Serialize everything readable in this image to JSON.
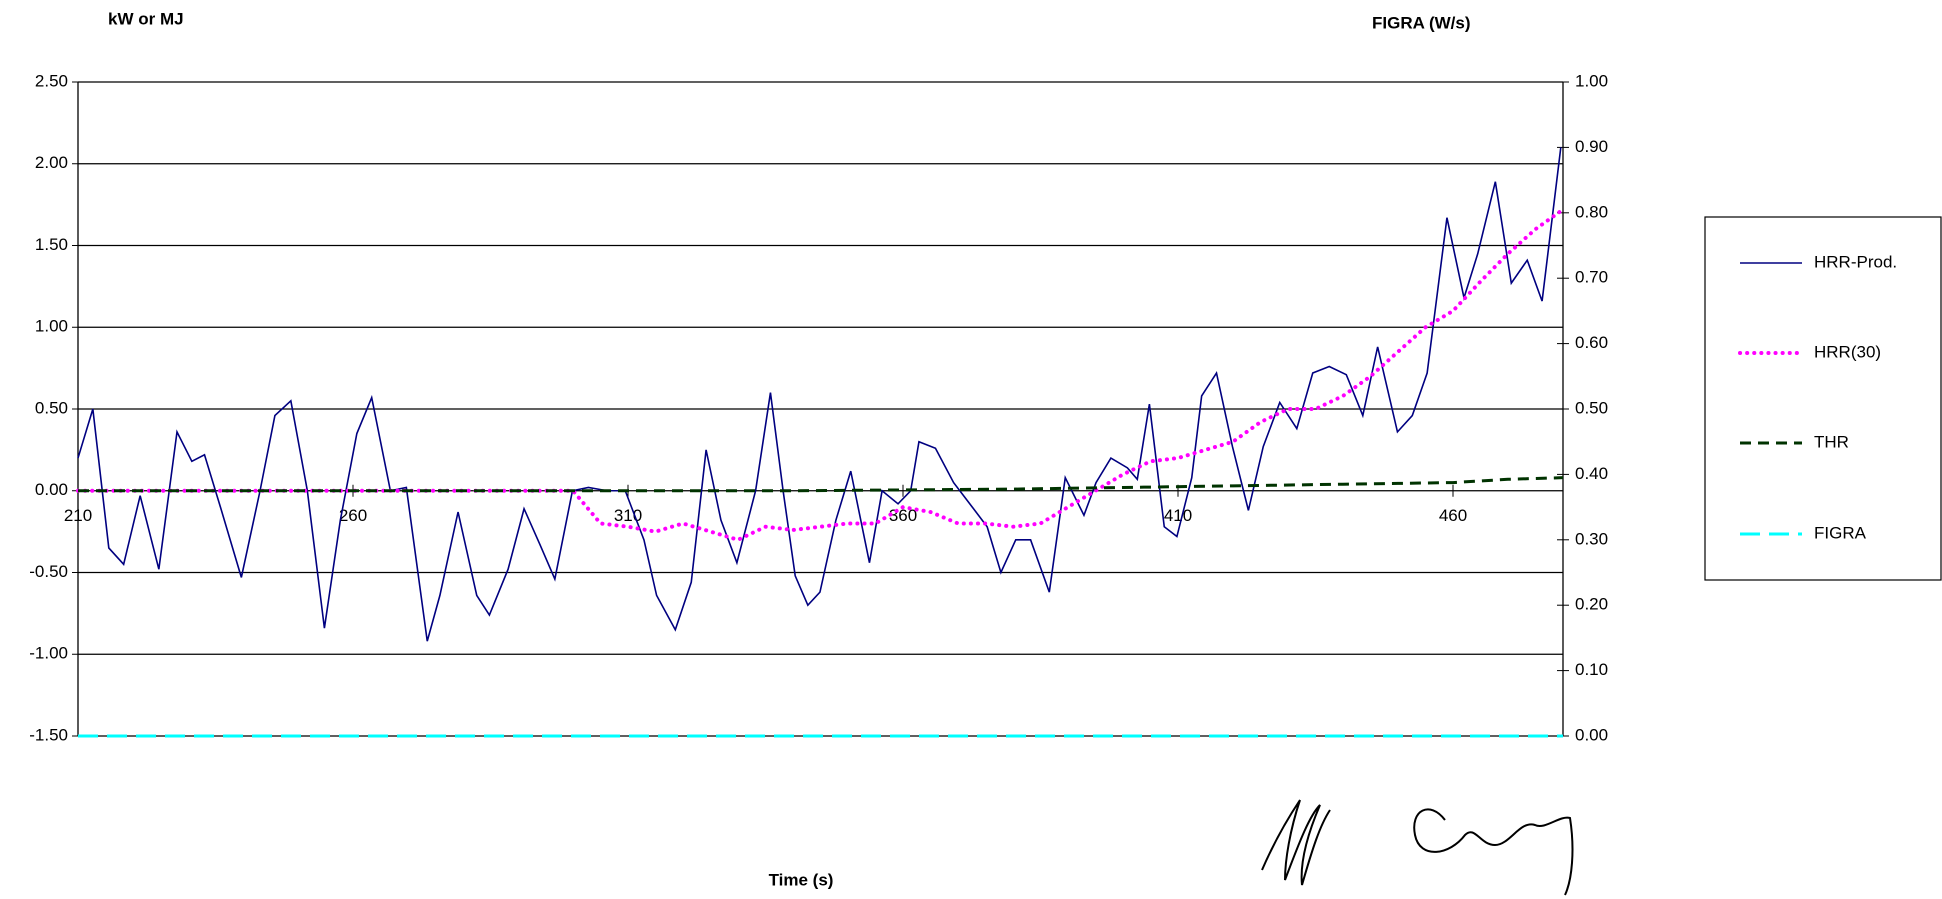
{
  "chart_data": {
    "type": "line",
    "ylabel": "kW or MJ",
    "y2label": "FIGRA (W/s)",
    "xlabel": "Time (s)",
    "xlim": [
      210,
      480
    ],
    "xticks": [
      210,
      260,
      310,
      360,
      410,
      460
    ],
    "ylim": [
      -1.5,
      2.5
    ],
    "yticks": [
      {
        "value": -1.5,
        "label": "-1.50"
      },
      {
        "value": -1,
        "label": "-1.00"
      },
      {
        "value": -0.5,
        "label": "-0.50"
      },
      {
        "value": 0,
        "label": "0.00"
      },
      {
        "value": 0.5,
        "label": "0.50"
      },
      {
        "value": 1,
        "label": "1.00"
      },
      {
        "value": 1.5,
        "label": "1.50"
      },
      {
        "value": 2,
        "label": "2.00"
      },
      {
        "value": 2.5,
        "label": "2.50"
      }
    ],
    "y2lim": [
      0,
      1
    ],
    "y2ticks": [
      {
        "value": 0,
        "label": "0.00"
      },
      {
        "value": 0.1,
        "label": "0.10"
      },
      {
        "value": 0.2,
        "label": "0.20"
      },
      {
        "value": 0.3,
        "label": "0.30"
      },
      {
        "value": 0.4,
        "label": "0.40"
      },
      {
        "value": 0.5,
        "label": "0.50"
      },
      {
        "value": 0.6,
        "label": "0.60"
      },
      {
        "value": 0.7,
        "label": "0.70"
      },
      {
        "value": 0.8,
        "label": "0.80"
      },
      {
        "value": 0.9,
        "label": "0.90"
      },
      {
        "value": 1,
        "label": "1.00"
      }
    ],
    "grid": true,
    "legend": "right",
    "series": [
      {
        "name": "HRR-Prod.",
        "color": "#000080",
        "line_style": "solid",
        "x": [
          210,
          212.7,
          215.6,
          218.3,
          221.3,
          224.7,
          228,
          230.7,
          233,
          235.9,
          239.7,
          243.1,
          245.8,
          248.7,
          251.7,
          254.8,
          257.7,
          260.7,
          263.4,
          266.8,
          269.7,
          273.5,
          275.8,
          279.1,
          282.5,
          284.8,
          288.2,
          291.1,
          294,
          296.7,
          299.9,
          302.8,
          306.2,
          309.5,
          312.9,
          315.2,
          318.6,
          321.5,
          324.2,
          326.9,
          329.8,
          333.2,
          335.9,
          338.2,
          340.4,
          342.7,
          344.9,
          347.8,
          350.5,
          353.9,
          356.2,
          359.1,
          361.4,
          362.9,
          365.9,
          369.2,
          372.6,
          375.3,
          377.8,
          380.5,
          383.2,
          386.6,
          389.5,
          392.9,
          395.1,
          397.8,
          400.8,
          402.6,
          404.8,
          407.5,
          409.8,
          412.5,
          414.3,
          417,
          419.9,
          422.8,
          425.5,
          428.5,
          431.6,
          434.5,
          437.5,
          440.6,
          443.6,
          446.3,
          449.9,
          452.6,
          455.3,
          458.9,
          462,
          464.5,
          467.7,
          470.6,
          473.5,
          476.2,
          479.6
        ],
        "values": [
          0.2,
          0.5,
          -0.35,
          -0.45,
          -0.03,
          -0.48,
          0.36,
          0.18,
          0.22,
          -0.1,
          -0.53,
          0,
          0.46,
          0.55,
          0,
          -0.84,
          -0.18,
          0.35,
          0.57,
          0,
          0.02,
          -0.92,
          -0.64,
          -0.13,
          -0.64,
          -0.76,
          -0.48,
          -0.11,
          -0.33,
          -0.54,
          0,
          0.02,
          0,
          0,
          -0.3,
          -0.64,
          -0.85,
          -0.56,
          0.25,
          -0.18,
          -0.44,
          0,
          0.6,
          0,
          -0.52,
          -0.7,
          -0.62,
          -0.18,
          0.12,
          -0.44,
          0,
          -0.08,
          0,
          0.3,
          0.26,
          0.05,
          -0.1,
          -0.22,
          -0.5,
          -0.3,
          -0.3,
          -0.62,
          0.08,
          -0.15,
          0.05,
          0.2,
          0.14,
          0.07,
          0.53,
          -0.22,
          -0.28,
          0.08,
          0.58,
          0.72,
          0.27,
          -0.12,
          0.27,
          0.54,
          0.38,
          0.72,
          0.76,
          0.71,
          0.46,
          0.88,
          0.36,
          0.46,
          0.72,
          1.67,
          1.18,
          1.45,
          1.89,
          1.27,
          1.41,
          1.16,
          2.1
        ]
      },
      {
        "name": "HRR(30)",
        "color": "#ff00ff",
        "line_style": "dotted",
        "x": [
          210,
          240,
          270,
          300,
          305,
          310,
          315,
          320,
          325,
          330,
          335,
          340,
          345,
          350,
          355,
          360,
          365,
          370,
          375,
          380,
          385,
          390,
          395,
          400,
          405,
          410,
          415,
          420,
          425,
          430,
          435,
          440,
          445,
          450,
          455,
          460,
          465,
          470,
          475,
          480
        ],
        "values": [
          0,
          0,
          0,
          0,
          -0.2,
          -0.22,
          -0.25,
          -0.2,
          -0.25,
          -0.3,
          -0.22,
          -0.24,
          -0.22,
          -0.2,
          -0.2,
          -0.1,
          -0.13,
          -0.2,
          -0.2,
          -0.22,
          -0.2,
          -0.1,
          0,
          0.1,
          0.18,
          0.2,
          0.25,
          0.3,
          0.42,
          0.5,
          0.5,
          0.58,
          0.7,
          0.85,
          1.0,
          1.1,
          1.28,
          1.45,
          1.6,
          1.72
        ]
      },
      {
        "name": "THR",
        "color": "#003300",
        "line_style": "dashed",
        "x": [
          210,
          260,
          300,
          340,
          380,
          400,
          420,
          440,
          460,
          470,
          480
        ],
        "values": [
          0,
          0,
          0,
          0,
          0.01,
          0.02,
          0.03,
          0.04,
          0.05,
          0.07,
          0.08
        ]
      },
      {
        "name": "FIGRA",
        "color": "#00ffff",
        "line_style": "longdash",
        "axis": "y2",
        "x": [
          210,
          480
        ],
        "values": [
          0,
          0
        ]
      }
    ]
  }
}
